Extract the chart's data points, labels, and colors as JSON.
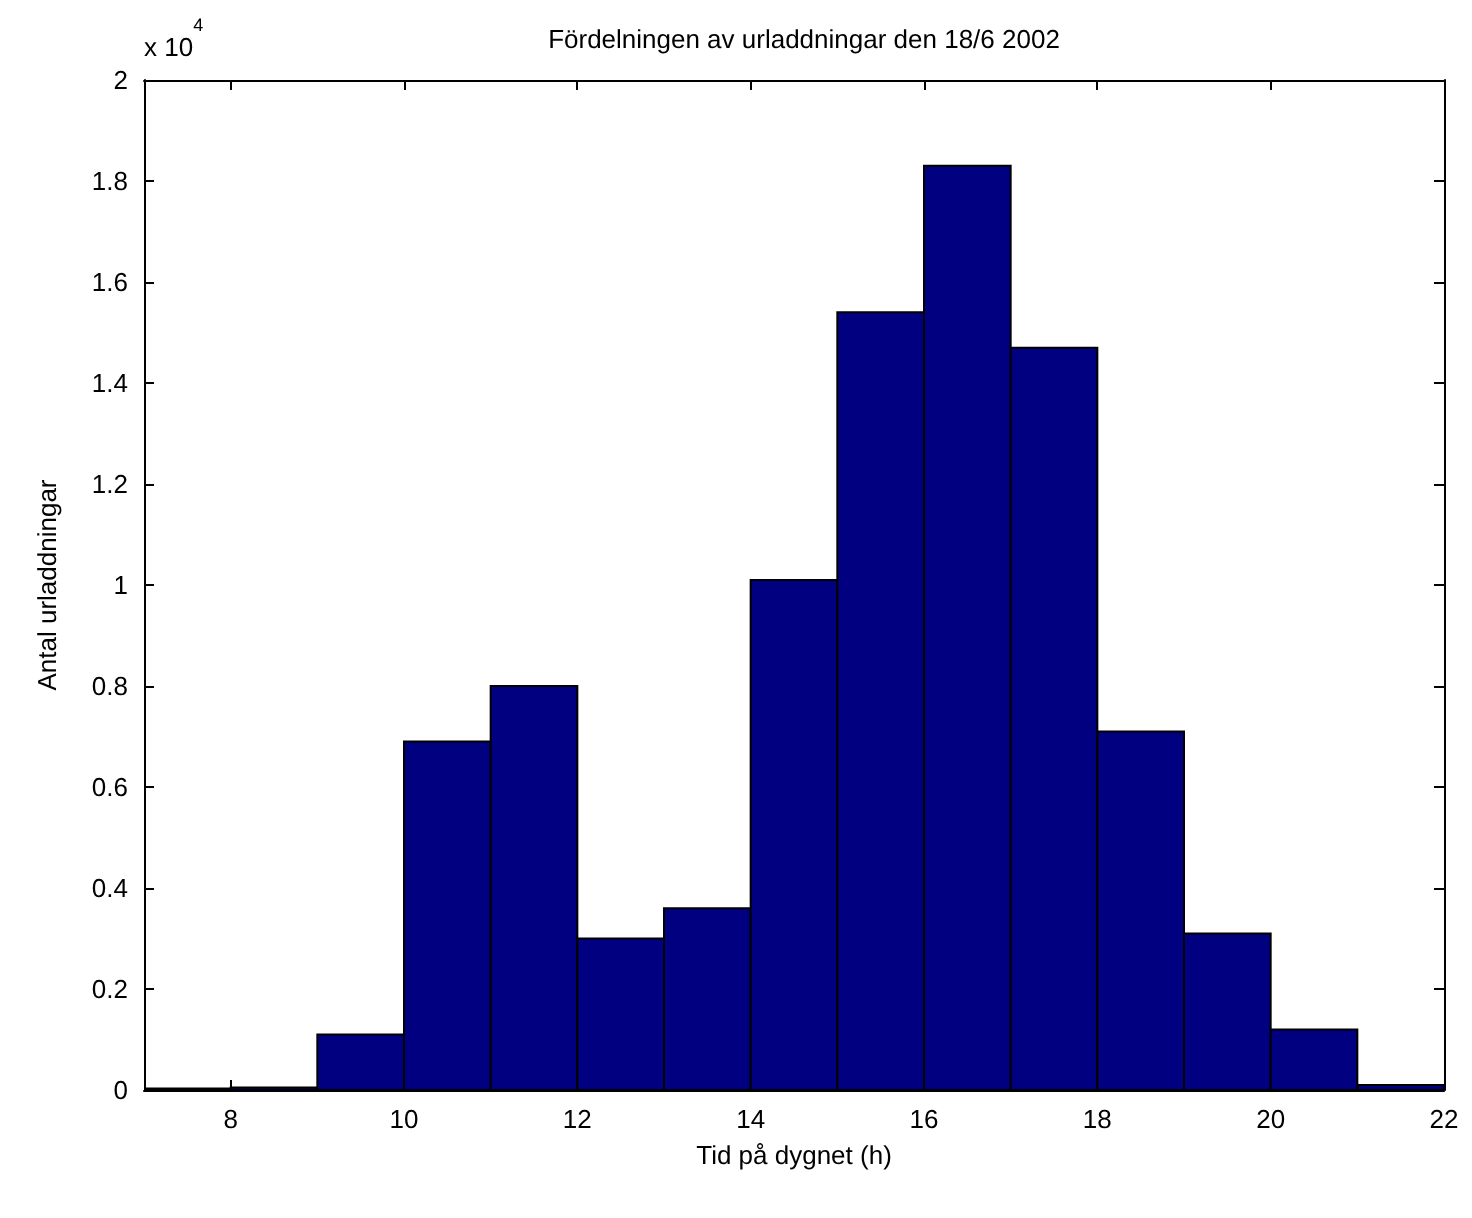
{
  "chart_data": {
    "type": "histogram",
    "title": "Fördelningen av urladdningar den 18/6 2002",
    "xlabel": "Tid på dygnet (h)",
    "ylabel": "Antal urladdningar",
    "annotations": [
      "x 10$^{4}$"
    ],
    "bins": [
      7,
      8,
      9,
      10,
      11,
      12,
      13,
      14,
      15,
      16,
      17,
      18,
      19,
      20,
      21,
      22
    ],
    "values": [
      0.003,
      0.005,
      0.11,
      0.69,
      0.8,
      0.3,
      0.36,
      1.01,
      1.54,
      1.83,
      1.47,
      0.71,
      0.31,
      0.12,
      0.01
    ],
    "color": "#000080",
    "xlim": [
      7,
      22
    ],
    "xticks": [
      8,
      10,
      12,
      14,
      16,
      18,
      20,
      22
    ],
    "ylim": [
      0,
      2
    ],
    "yticks": [
      0,
      0.2,
      0.4,
      0.6,
      0.8,
      1,
      1.2,
      1.4,
      1.6,
      1.8,
      2
    ],
    "grid": false
  }
}
